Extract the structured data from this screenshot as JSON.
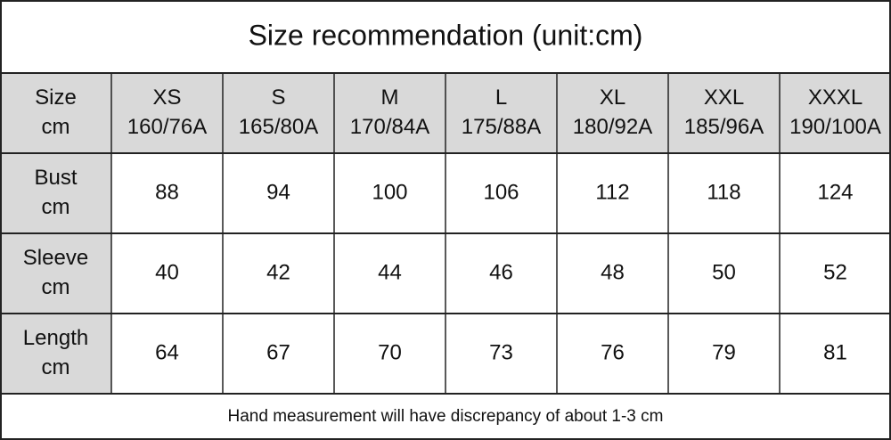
{
  "title": "Size recommendation (unit:cm)",
  "table": {
    "header": [
      [
        "Size",
        "cm"
      ],
      [
        "XS",
        "160/76A"
      ],
      [
        "S",
        "165/80A"
      ],
      [
        "M",
        "170/84A"
      ],
      [
        "L",
        "175/88A"
      ],
      [
        "XL",
        "180/92A"
      ],
      [
        "XXL",
        "185/96A"
      ],
      [
        "XXXL",
        "190/100A"
      ]
    ],
    "rows": [
      [
        [
          "Bust",
          "cm"
        ],
        88,
        94,
        100,
        106,
        112,
        118,
        124
      ],
      [
        [
          "Sleeve",
          "cm"
        ],
        40,
        42,
        44,
        46,
        48,
        50,
        52
      ],
      [
        [
          "Length",
          "cm"
        ],
        64,
        67,
        70,
        73,
        76,
        79,
        81
      ]
    ]
  },
  "footer": "Hand measurement will have discrepancy of about 1-3 cm"
}
